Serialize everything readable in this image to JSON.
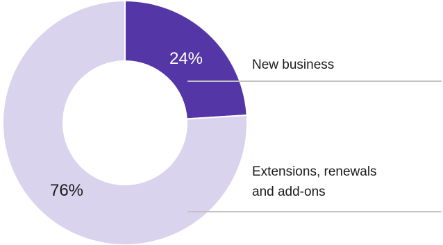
{
  "chart_data": {
    "type": "pie",
    "donut": true,
    "legend": "right",
    "slices": [
      {
        "category": "New business",
        "label_lines": [
          "New business"
        ],
        "value": 24,
        "value_label": "24%",
        "color": "#5436a6",
        "label_color": "#ffffff"
      },
      {
        "category": "Extensions, renewals and add-ons",
        "label_lines": [
          "Extensions, renewals",
          "and add-ons"
        ],
        "value": 76,
        "value_label": "76%",
        "color": "#d9d3ee",
        "label_color": "#1a1a1a"
      }
    ],
    "leader_line_color": "#c2c2c2"
  }
}
